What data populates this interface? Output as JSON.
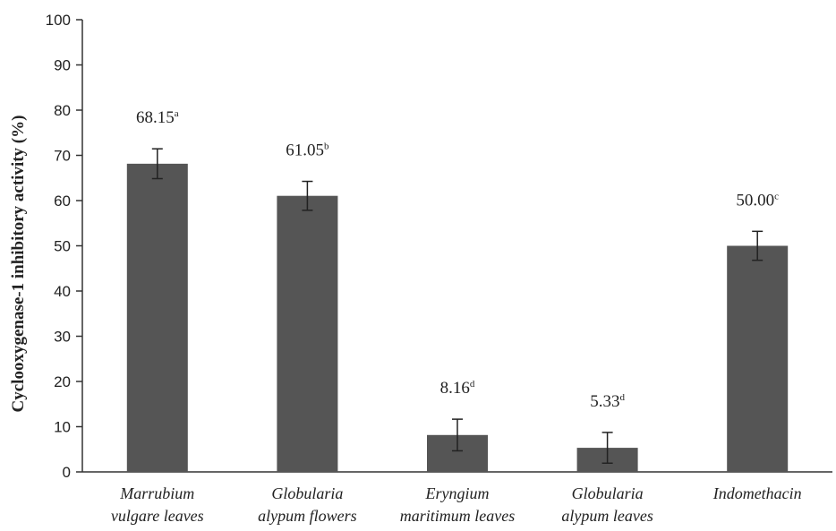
{
  "chart_data": {
    "type": "bar",
    "title": "",
    "xlabel": "",
    "ylabel": "Cyclooxygenase-1 inhibitory activity (%)",
    "ylim": [
      0,
      100
    ],
    "yticks": [
      0,
      10,
      20,
      30,
      40,
      50,
      60,
      70,
      80,
      90,
      100
    ],
    "grid": false,
    "legend": "none",
    "categories": [
      [
        "Marrubium",
        "vulgare leaves"
      ],
      [
        "Globularia",
        "alypum flowers"
      ],
      [
        "Eryngium",
        "maritimum leaves"
      ],
      [
        "Globularia",
        "alypum leaves"
      ],
      [
        "Indomethacin"
      ]
    ],
    "values": [
      68.15,
      61.05,
      8.16,
      5.33,
      50.0
    ],
    "errors": [
      3.3,
      3.2,
      3.5,
      3.4,
      3.2
    ],
    "data_labels": [
      {
        "value": "68.15",
        "letter": "a"
      },
      {
        "value": "61.05",
        "letter": "b"
      },
      {
        "value": "8.16",
        "letter": "d"
      },
      {
        "value": "5.33",
        "letter": "d"
      },
      {
        "value": "50.00",
        "letter": "c"
      }
    ],
    "bar_color": "#555555"
  }
}
